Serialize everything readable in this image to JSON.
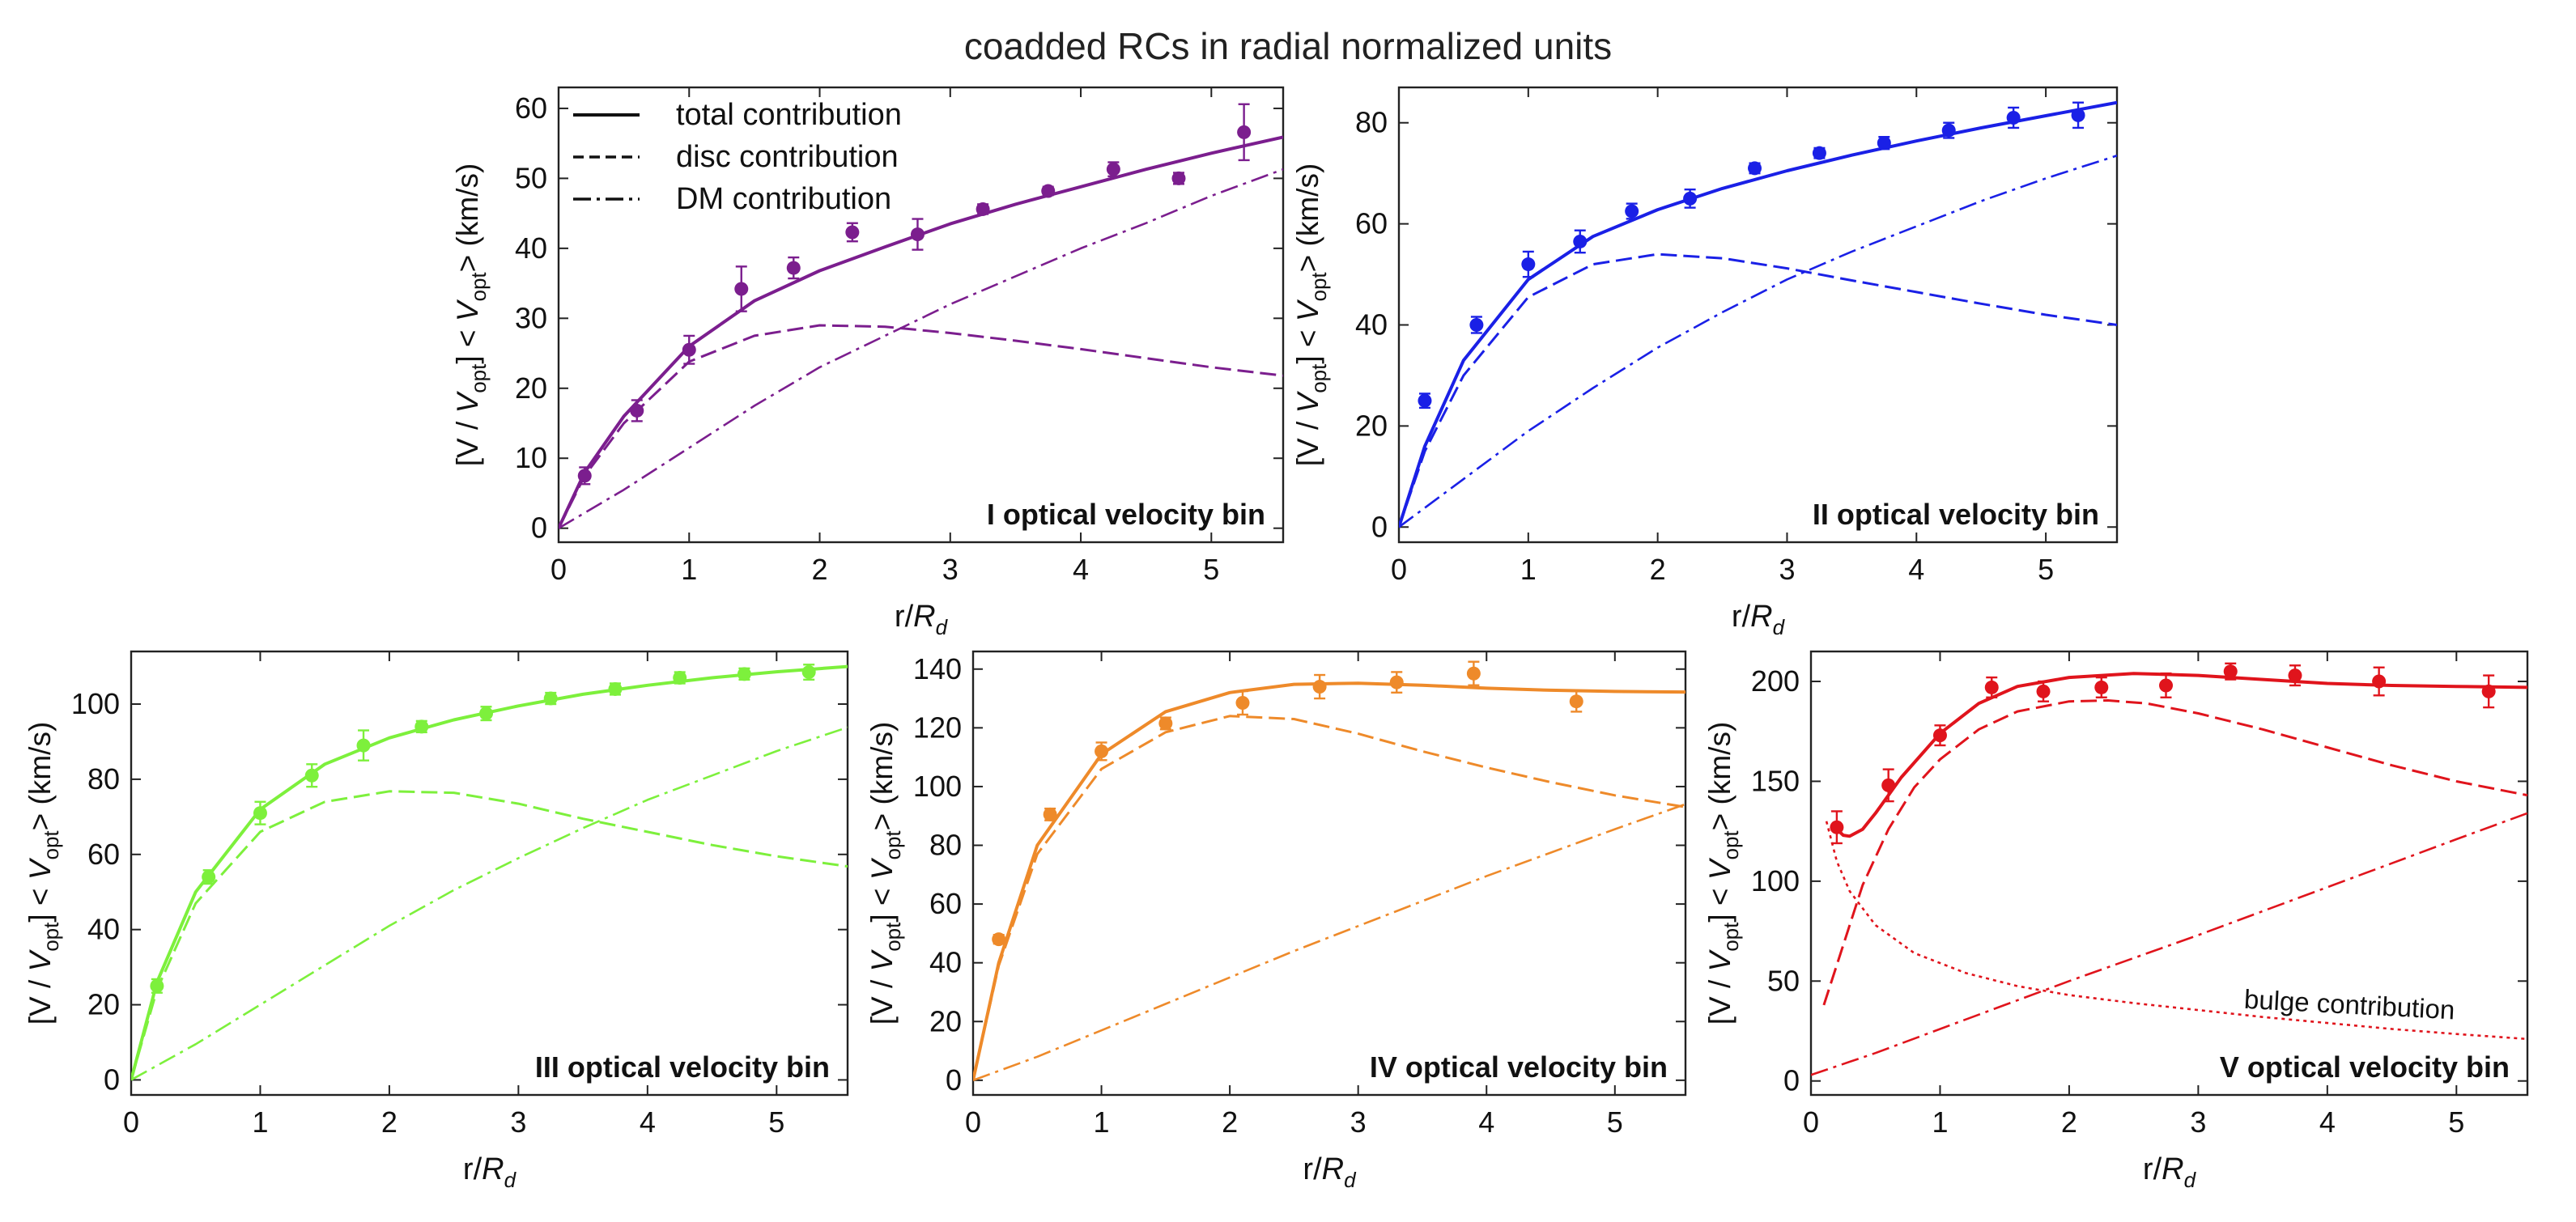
{
  "figure_title": "coadded RCs in radial normalized units",
  "legend": {
    "total": "total contribution",
    "disc": "disc contribution",
    "dm": "DM contribution"
  },
  "chart_data": [
    {
      "type": "line",
      "panel_label": "I  optical velocity bin",
      "color": "#7b1e8e",
      "xlabel": "r/R_d",
      "ylabel": "[V / V_opt] < V_opt> (km/s)",
      "xlim": [
        0,
        5.55
      ],
      "ylim": [
        -2,
        63
      ],
      "xticks": [
        0,
        1,
        2,
        3,
        4,
        5
      ],
      "yticks": [
        0,
        10,
        20,
        30,
        40,
        50,
        60
      ],
      "show_legend": true,
      "points": [
        [
          0.2,
          7.5,
          1.2
        ],
        [
          0.6,
          16.8,
          1.5
        ],
        [
          1.0,
          25.5,
          2.0
        ],
        [
          1.4,
          34.2,
          3.2
        ],
        [
          1.8,
          37.2,
          1.5
        ],
        [
          2.25,
          42.3,
          1.3
        ],
        [
          2.75,
          42.0,
          2.2
        ],
        [
          3.25,
          45.6,
          0.7
        ],
        [
          3.75,
          48.2,
          0.6
        ],
        [
          4.25,
          51.3,
          1.0
        ],
        [
          4.75,
          50.0,
          0.8
        ],
        [
          5.25,
          56.6,
          4.0
        ]
      ],
      "curves": {
        "total": [
          [
            0,
            0
          ],
          [
            0.2,
            8
          ],
          [
            0.5,
            16
          ],
          [
            1.0,
            26
          ],
          [
            1.5,
            32.5
          ],
          [
            2.0,
            36.8
          ],
          [
            2.5,
            40.2
          ],
          [
            3.0,
            43.5
          ],
          [
            3.5,
            46.3
          ],
          [
            4.0,
            48.8
          ],
          [
            4.5,
            51.3
          ],
          [
            5.0,
            53.6
          ],
          [
            5.55,
            55.9
          ]
        ],
        "disc": [
          [
            0,
            0
          ],
          [
            0.2,
            7.5
          ],
          [
            0.5,
            15
          ],
          [
            1.0,
            23.8
          ],
          [
            1.5,
            27.5
          ],
          [
            2.0,
            29.0
          ],
          [
            2.5,
            28.8
          ],
          [
            3.0,
            27.9
          ],
          [
            3.5,
            26.8
          ],
          [
            4.0,
            25.6
          ],
          [
            4.5,
            24.3
          ],
          [
            5.0,
            23.0
          ],
          [
            5.55,
            21.8
          ]
        ],
        "dm": [
          [
            0,
            0
          ],
          [
            0.5,
            5.5
          ],
          [
            1.0,
            11.5
          ],
          [
            1.5,
            17.5
          ],
          [
            2.0,
            23
          ],
          [
            2.5,
            27.5
          ],
          [
            3.0,
            32
          ],
          [
            3.5,
            36
          ],
          [
            4.0,
            40
          ],
          [
            4.5,
            43.6
          ],
          [
            5.0,
            47.5
          ],
          [
            5.55,
            51.3
          ]
        ]
      }
    },
    {
      "type": "line",
      "panel_label": "II  optical velocity bin",
      "color": "#1a20e6",
      "xlabel": "r/R_d",
      "ylabel": "[V / V_opt] < V_opt> (km/s)",
      "xlim": [
        0,
        5.55
      ],
      "ylim": [
        -3,
        87
      ],
      "xticks": [
        0,
        1,
        2,
        3,
        4,
        5
      ],
      "yticks": [
        0,
        20,
        40,
        60,
        80
      ],
      "show_legend": false,
      "points": [
        [
          0.2,
          25,
          1.4
        ],
        [
          0.6,
          40,
          1.6
        ],
        [
          1.0,
          52,
          2.5
        ],
        [
          1.4,
          56.5,
          2.2
        ],
        [
          1.8,
          62.5,
          1.5
        ],
        [
          2.25,
          65,
          1.8
        ],
        [
          2.75,
          71,
          1.0
        ],
        [
          3.25,
          74,
          1.0
        ],
        [
          3.75,
          76,
          1.2
        ],
        [
          4.25,
          78.5,
          1.5
        ],
        [
          4.75,
          81,
          2.0
        ],
        [
          5.25,
          81.5,
          2.5
        ]
      ],
      "curves": {
        "total": [
          [
            0,
            0
          ],
          [
            0.2,
            16
          ],
          [
            0.5,
            33
          ],
          [
            1.0,
            49
          ],
          [
            1.5,
            57.5
          ],
          [
            2.0,
            62.8
          ],
          [
            2.5,
            67
          ],
          [
            3.0,
            70.5
          ],
          [
            3.5,
            73.6
          ],
          [
            4.0,
            76.4
          ],
          [
            4.5,
            79
          ],
          [
            5.0,
            81.4
          ],
          [
            5.55,
            84
          ]
        ],
        "disc": [
          [
            0,
            0
          ],
          [
            0.2,
            15
          ],
          [
            0.5,
            30
          ],
          [
            1.0,
            45.5
          ],
          [
            1.5,
            52
          ],
          [
            2.0,
            54
          ],
          [
            2.5,
            53.2
          ],
          [
            3.0,
            51.2
          ],
          [
            3.5,
            48.8
          ],
          [
            4.0,
            46.5
          ],
          [
            4.5,
            44.2
          ],
          [
            5.0,
            42
          ],
          [
            5.55,
            40
          ]
        ],
        "dm": [
          [
            0,
            0
          ],
          [
            0.5,
            9.5
          ],
          [
            1.0,
            19
          ],
          [
            1.5,
            27.5
          ],
          [
            2.0,
            35.5
          ],
          [
            2.5,
            42.5
          ],
          [
            3.0,
            49
          ],
          [
            3.5,
            54.5
          ],
          [
            4.0,
            59.5
          ],
          [
            4.5,
            64.5
          ],
          [
            5.0,
            69
          ],
          [
            5.55,
            73.5
          ]
        ]
      }
    },
    {
      "type": "line",
      "panel_label": "III  optical velocity bin",
      "color": "#7df03c",
      "xlabel": "r/R_d",
      "ylabel": "[V / V_opt] < V_opt> (km/s)",
      "xlim": [
        0,
        5.55
      ],
      "ylim": [
        -4,
        114
      ],
      "xticks": [
        0,
        1,
        2,
        3,
        4,
        5
      ],
      "yticks": [
        0,
        20,
        40,
        60,
        80,
        100
      ],
      "show_legend": false,
      "points": [
        [
          0.2,
          25,
          1.8
        ],
        [
          0.6,
          54,
          1.8
        ],
        [
          1.0,
          71,
          3.0
        ],
        [
          1.4,
          81,
          3.0
        ],
        [
          1.8,
          89,
          4.0
        ],
        [
          2.25,
          94,
          1.5
        ],
        [
          2.75,
          97.5,
          1.8
        ],
        [
          3.25,
          101.5,
          1.5
        ],
        [
          3.75,
          104,
          1.5
        ],
        [
          4.25,
          107,
          1.5
        ],
        [
          4.75,
          108,
          1.5
        ],
        [
          5.25,
          108.5,
          2.0
        ]
      ],
      "curves": {
        "total": [
          [
            0,
            0
          ],
          [
            0.2,
            26
          ],
          [
            0.5,
            50
          ],
          [
            1.0,
            72
          ],
          [
            1.5,
            84
          ],
          [
            2.0,
            91
          ],
          [
            2.5,
            95.8
          ],
          [
            3.0,
            99.5
          ],
          [
            3.5,
            102.6
          ],
          [
            4.0,
            105
          ],
          [
            4.5,
            107
          ],
          [
            5.0,
            108.6
          ],
          [
            5.55,
            110
          ]
        ],
        "disc": [
          [
            0,
            0
          ],
          [
            0.2,
            24
          ],
          [
            0.5,
            47
          ],
          [
            1.0,
            66
          ],
          [
            1.5,
            74
          ],
          [
            2.0,
            76.8
          ],
          [
            2.5,
            76.4
          ],
          [
            3.0,
            73.5
          ],
          [
            3.5,
            69.5
          ],
          [
            4.0,
            66
          ],
          [
            4.5,
            62.5
          ],
          [
            5.0,
            59.5
          ],
          [
            5.55,
            56.8
          ]
        ],
        "dm": [
          [
            0,
            0
          ],
          [
            0.5,
            9.5
          ],
          [
            1.0,
            20
          ],
          [
            1.5,
            30.5
          ],
          [
            2.0,
            41
          ],
          [
            2.5,
            50.5
          ],
          [
            3.0,
            59
          ],
          [
            3.5,
            67
          ],
          [
            4.0,
            74.5
          ],
          [
            4.5,
            81
          ],
          [
            5.0,
            87.5
          ],
          [
            5.55,
            93.8
          ]
        ]
      }
    },
    {
      "type": "line",
      "panel_label": "IV  optical velocity bin",
      "color": "#ee8a2a",
      "xlabel": "r/R_d",
      "ylabel": "[V / V_opt] < V_opt> (km/s)",
      "xlim": [
        0,
        5.55
      ],
      "ylim": [
        -5,
        146
      ],
      "xticks": [
        0,
        1,
        2,
        3,
        4,
        5
      ],
      "yticks": [
        0,
        20,
        40,
        60,
        80,
        100,
        120,
        140
      ],
      "show_legend": false,
      "points": [
        [
          0.2,
          48,
          1.5
        ],
        [
          0.6,
          90.5,
          2.0
        ],
        [
          1.0,
          112,
          3.0
        ],
        [
          1.5,
          121.5,
          2.0
        ],
        [
          2.1,
          128.5,
          4.0
        ],
        [
          2.7,
          134,
          4.0
        ],
        [
          3.3,
          135.5,
          3.5
        ],
        [
          3.9,
          138.5,
          4.0
        ],
        [
          4.7,
          129,
          3.5
        ]
      ],
      "curves": {
        "total": [
          [
            0,
            0
          ],
          [
            0.2,
            40
          ],
          [
            0.5,
            80
          ],
          [
            1.0,
            111
          ],
          [
            1.5,
            125.5
          ],
          [
            2.0,
            132
          ],
          [
            2.5,
            134.8
          ],
          [
            3.0,
            135.2
          ],
          [
            3.5,
            134.5
          ],
          [
            4.0,
            133.5
          ],
          [
            4.5,
            132.8
          ],
          [
            5.0,
            132.4
          ],
          [
            5.55,
            132.2
          ]
        ],
        "disc": [
          [
            0,
            0
          ],
          [
            0.2,
            39
          ],
          [
            0.5,
            77
          ],
          [
            1.0,
            106
          ],
          [
            1.5,
            118.5
          ],
          [
            2.0,
            124
          ],
          [
            2.5,
            123
          ],
          [
            3.0,
            118
          ],
          [
            3.5,
            112
          ],
          [
            4.0,
            106.5
          ],
          [
            4.5,
            101.5
          ],
          [
            5.0,
            97
          ],
          [
            5.55,
            93
          ]
        ],
        "dm": [
          [
            0,
            0
          ],
          [
            0.5,
            8
          ],
          [
            1.0,
            17
          ],
          [
            1.5,
            26
          ],
          [
            2.0,
            35
          ],
          [
            2.5,
            44
          ],
          [
            3.0,
            52.5
          ],
          [
            3.5,
            61
          ],
          [
            4.0,
            69.5
          ],
          [
            4.5,
            77.5
          ],
          [
            5.0,
            85.5
          ],
          [
            5.55,
            94
          ]
        ]
      }
    },
    {
      "type": "line",
      "panel_label": "V  optical velocity bin",
      "color": "#e0141c",
      "xlabel": "r/R_d",
      "ylabel": "[V / V_opt] < V_opt> (km/s)",
      "xlim": [
        0,
        5.55
      ],
      "ylim": [
        -7,
        215
      ],
      "xticks": [
        0,
        1,
        2,
        3,
        4,
        5
      ],
      "yticks": [
        0,
        50,
        100,
        150,
        200
      ],
      "show_legend": false,
      "bulge_label": "bulge contribution",
      "points": [
        [
          0.2,
          127,
          8
        ],
        [
          0.6,
          148,
          8
        ],
        [
          1.0,
          173,
          5
        ],
        [
          1.4,
          197,
          5
        ],
        [
          1.8,
          195,
          5
        ],
        [
          2.25,
          197,
          5
        ],
        [
          2.75,
          198,
          6
        ],
        [
          3.25,
          205,
          4
        ],
        [
          3.75,
          203,
          5
        ],
        [
          4.4,
          200,
          7
        ],
        [
          5.25,
          195,
          8
        ]
      ],
      "curves": {
        "total": [
          [
            0.2,
            126
          ],
          [
            0.25,
            123
          ],
          [
            0.3,
            122.5
          ],
          [
            0.4,
            126
          ],
          [
            0.5,
            134
          ],
          [
            0.7,
            152
          ],
          [
            1.0,
            174
          ],
          [
            1.3,
            189
          ],
          [
            1.6,
            197.5
          ],
          [
            2.0,
            202
          ],
          [
            2.5,
            204
          ],
          [
            3.0,
            203
          ],
          [
            3.5,
            201
          ],
          [
            4.0,
            199
          ],
          [
            4.5,
            198
          ],
          [
            5.0,
            197.5
          ],
          [
            5.55,
            197
          ]
        ],
        "disc": [
          [
            0.1,
            38
          ],
          [
            0.2,
            58
          ],
          [
            0.4,
            98
          ],
          [
            0.6,
            126
          ],
          [
            0.8,
            147
          ],
          [
            1.0,
            161
          ],
          [
            1.3,
            176
          ],
          [
            1.6,
            185
          ],
          [
            2.0,
            190
          ],
          [
            2.3,
            190.5
          ],
          [
            2.6,
            189
          ],
          [
            3.0,
            184
          ],
          [
            3.5,
            176
          ],
          [
            4.0,
            167
          ],
          [
            4.5,
            158
          ],
          [
            5.0,
            150
          ],
          [
            5.55,
            143
          ]
        ],
        "dm": [
          [
            0,
            3
          ],
          [
            0.5,
            14
          ],
          [
            1.0,
            26
          ],
          [
            1.5,
            38
          ],
          [
            2.0,
            50
          ],
          [
            2.5,
            61.5
          ],
          [
            3.0,
            73
          ],
          [
            3.5,
            85
          ],
          [
            4.0,
            97
          ],
          [
            4.5,
            109
          ],
          [
            5.0,
            121
          ],
          [
            5.55,
            134
          ]
        ],
        "bulge": [
          [
            0.12,
            130
          ],
          [
            0.2,
            110
          ],
          [
            0.3,
            95
          ],
          [
            0.5,
            78
          ],
          [
            0.8,
            64
          ],
          [
            1.2,
            54
          ],
          [
            1.6,
            47.5
          ],
          [
            2.0,
            43
          ],
          [
            2.5,
            39
          ],
          [
            3.0,
            35.5
          ],
          [
            3.5,
            32
          ],
          [
            4.0,
            29
          ],
          [
            4.5,
            26
          ],
          [
            5.0,
            23.5
          ],
          [
            5.55,
            21
          ]
        ]
      }
    }
  ]
}
